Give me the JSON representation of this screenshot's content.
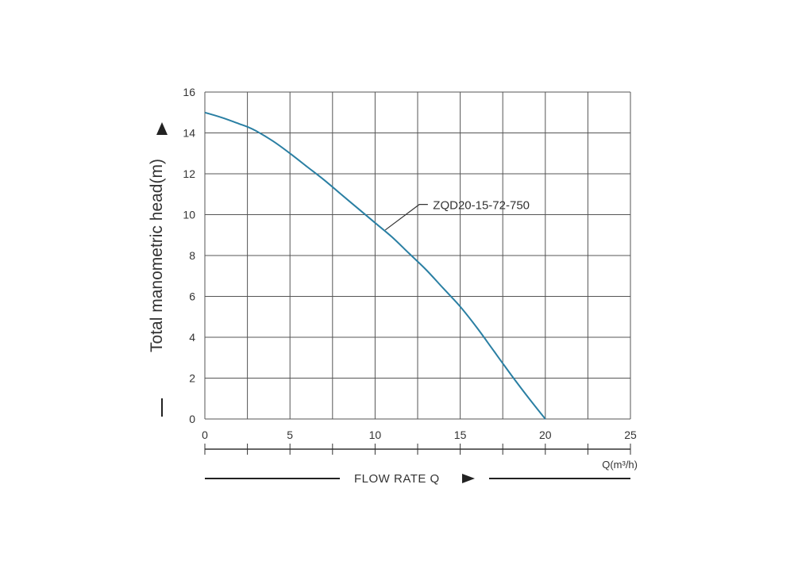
{
  "chart_data": {
    "type": "line",
    "xlabel": "FLOW  RATE Q",
    "ylabel": "Total manometric head(m)",
    "x_unit": "Q(m³/h)",
    "xlim": [
      0,
      25
    ],
    "ylim": [
      0,
      16
    ],
    "x_ticks": [
      "0",
      "5",
      "10",
      "15",
      "20",
      "25"
    ],
    "y_ticks": [
      "0",
      "2",
      "4",
      "6",
      "8",
      "10",
      "12",
      "14",
      "16"
    ],
    "grid": true,
    "series": [
      {
        "name": "ZQD20-15-72-750",
        "color": "#2a7fa3",
        "x": [
          0,
          1,
          2,
          2.5,
          3,
          4,
          5,
          6,
          7,
          8,
          9,
          10,
          11,
          12,
          13,
          14,
          15,
          16,
          17,
          18,
          19,
          20
        ],
        "y": [
          15.0,
          14.75,
          14.45,
          14.3,
          14.1,
          13.6,
          13.0,
          12.35,
          11.7,
          11.0,
          10.3,
          9.6,
          8.9,
          8.1,
          7.3,
          6.4,
          5.5,
          4.45,
          3.3,
          2.15,
          1.05,
          0.0
        ]
      }
    ]
  }
}
